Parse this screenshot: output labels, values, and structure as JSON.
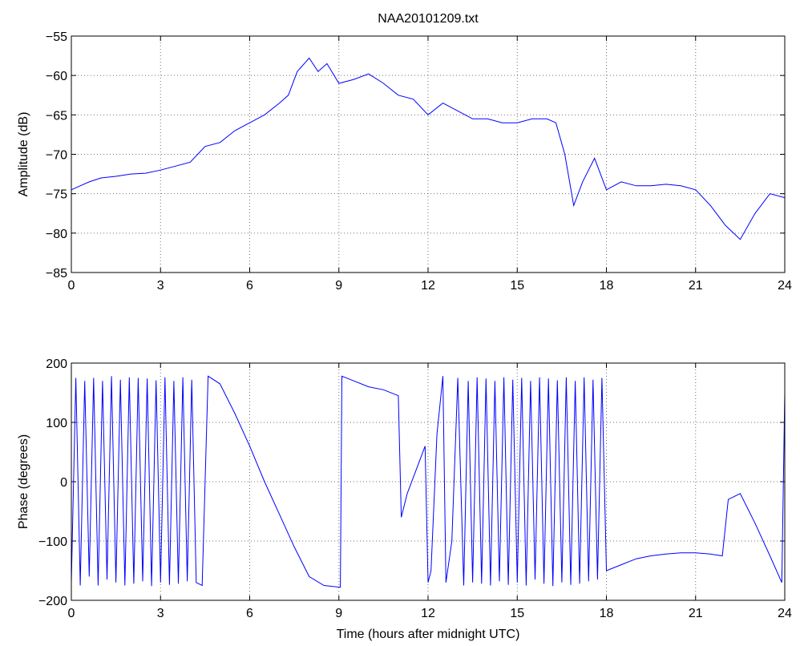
{
  "chart_data": [
    {
      "type": "line",
      "title": "NAA20101209.txt",
      "xlabel": "",
      "ylabel": "Amplitude (dB)",
      "xlim": [
        0,
        24
      ],
      "ylim": [
        -85,
        -55
      ],
      "xticks": [
        "0",
        "3",
        "6",
        "9",
        "12",
        "15",
        "18",
        "21",
        "24"
      ],
      "yticks": [
        "-55",
        "-60",
        "-65",
        "-70",
        "-75",
        "-80",
        "-85"
      ],
      "grid": true,
      "color": "#0000ff",
      "x": [
        0,
        0.3,
        0.6,
        1.0,
        1.5,
        2.0,
        2.5,
        3.0,
        3.5,
        4.0,
        4.5,
        5.0,
        5.5,
        6.0,
        6.5,
        7.0,
        7.3,
        7.6,
        8.0,
        8.3,
        8.6,
        9.0,
        9.5,
        10.0,
        10.5,
        11.0,
        11.5,
        12.0,
        12.5,
        13.0,
        13.5,
        14.0,
        14.5,
        15.0,
        15.5,
        16.0,
        16.3,
        16.6,
        16.9,
        17.2,
        17.6,
        18.0,
        18.5,
        19.0,
        19.5,
        20.0,
        20.5,
        21.0,
        21.5,
        22.0,
        22.5,
        23.0,
        23.5,
        24.0
      ],
      "values": [
        -74.5,
        -74,
        -73.5,
        -73,
        -72.8,
        -72.5,
        -72.4,
        -72,
        -71.5,
        -71,
        -69,
        -68.5,
        -67,
        -66,
        -65,
        -63.5,
        -62.5,
        -59.5,
        -57.8,
        -59.5,
        -58.5,
        -61,
        -60.5,
        -59.8,
        -61,
        -62.5,
        -63,
        -65,
        -63.5,
        -64.5,
        -65.5,
        -65.5,
        -66,
        -66,
        -65.5,
        -65.5,
        -66,
        -70,
        -76.5,
        -73.5,
        -70.5,
        -74.5,
        -73.5,
        -74,
        -74,
        -73.8,
        -74,
        -74.5,
        -76.5,
        -79,
        -80.8,
        -77.5,
        -75,
        -75.5
      ]
    },
    {
      "type": "line",
      "title": "",
      "xlabel": "Time (hours after midnight UTC)",
      "ylabel": "Phase (degrees)",
      "xlim": [
        0,
        24
      ],
      "ylim": [
        -200,
        200
      ],
      "xticks": [
        "0",
        "3",
        "6",
        "9",
        "12",
        "15",
        "18",
        "21",
        "24"
      ],
      "yticks": [
        "200",
        "100",
        "0",
        "-100",
        "-200"
      ],
      "grid": true,
      "color": "#0000ff",
      "x": [
        0,
        0.15,
        0.3,
        0.45,
        0.6,
        0.75,
        0.9,
        1.05,
        1.2,
        1.35,
        1.5,
        1.65,
        1.8,
        1.95,
        2.1,
        2.25,
        2.4,
        2.55,
        2.7,
        2.85,
        3.0,
        3.15,
        3.3,
        3.45,
        3.6,
        3.75,
        3.9,
        4.05,
        4.2,
        4.4,
        4.6,
        5.0,
        5.5,
        6.0,
        6.5,
        7.0,
        7.5,
        8.0,
        8.5,
        9.05,
        9.1,
        9.5,
        10.0,
        10.5,
        11.0,
        11.1,
        11.3,
        11.6,
        11.9,
        12.0,
        12.1,
        12.3,
        12.5,
        12.6,
        12.8,
        13.0,
        13.2,
        13.35,
        13.5,
        13.65,
        13.8,
        13.95,
        14.1,
        14.25,
        14.4,
        14.55,
        14.7,
        14.85,
        15.0,
        15.15,
        15.3,
        15.45,
        15.6,
        15.75,
        15.9,
        16.05,
        16.2,
        16.35,
        16.5,
        16.65,
        16.8,
        16.95,
        17.1,
        17.25,
        17.4,
        17.55,
        17.7,
        17.85,
        18.0,
        18.5,
        19.0,
        19.5,
        20.0,
        20.5,
        21.0,
        21.5,
        21.9,
        22.1,
        22.5,
        23.0,
        23.5,
        23.9,
        24.0
      ],
      "values": [
        -170,
        175,
        -175,
        170,
        -160,
        175,
        -175,
        170,
        -165,
        178,
        -170,
        172,
        -175,
        176,
        -172,
        175,
        -168,
        174,
        -176,
        171,
        -170,
        176,
        -174,
        170,
        -172,
        176,
        -168,
        172,
        -170,
        -175,
        178,
        165,
        115,
        60,
        0,
        -55,
        -110,
        -160,
        -175,
        -178,
        178,
        170,
        160,
        155,
        145,
        -60,
        -20,
        20,
        60,
        -170,
        -150,
        80,
        178,
        -170,
        -100,
        175,
        -175,
        170,
        -170,
        176,
        -172,
        174,
        -175,
        170,
        -168,
        176,
        -174,
        172,
        -170,
        175,
        -175,
        170,
        -165,
        176,
        -172,
        174,
        -176,
        171,
        -170,
        176,
        -174,
        170,
        -172,
        176,
        -168,
        172,
        -165,
        175,
        -150,
        -140,
        -130,
        -125,
        -122,
        -120,
        -120,
        -122,
        -125,
        -30,
        -20,
        -70,
        -125,
        -170,
        150
      ]
    }
  ]
}
